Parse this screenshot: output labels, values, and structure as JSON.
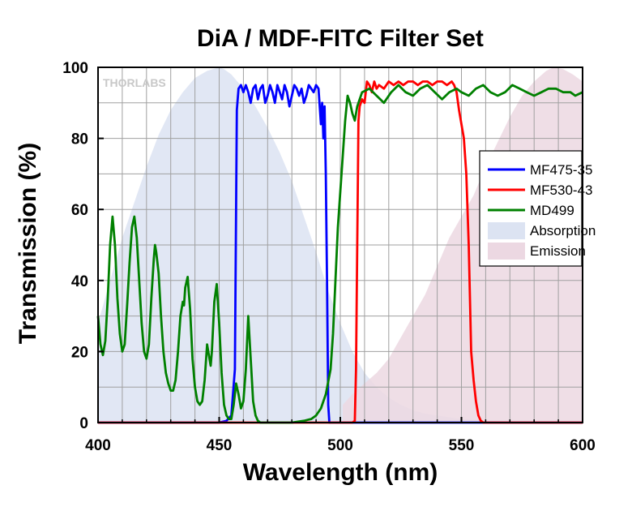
{
  "chart_data": {
    "type": "line",
    "title": "DiA / MDF-FITC Filter Set",
    "xlabel": "Wavelength (nm)",
    "ylabel": "Transmission (%)",
    "xlim": [
      400,
      600
    ],
    "ylim": [
      0,
      100
    ],
    "xticks": [
      400,
      450,
      500,
      550,
      600
    ],
    "yticks": [
      0,
      20,
      40,
      60,
      80,
      100
    ],
    "grid": true,
    "legend_position": "right",
    "logo": "THORLABS",
    "series": [
      {
        "name": "MF475-35",
        "kind": "line",
        "color": "#0000ff",
        "points": [
          [
            400,
            0
          ],
          [
            450,
            0
          ],
          [
            453,
            0.5
          ],
          [
            455,
            2
          ],
          [
            456.5,
            15
          ],
          [
            457.3,
            88
          ],
          [
            458,
            94
          ],
          [
            459,
            95
          ],
          [
            460,
            93
          ],
          [
            461,
            95
          ],
          [
            462,
            93
          ],
          [
            463,
            90
          ],
          [
            464,
            94
          ],
          [
            465,
            95
          ],
          [
            466,
            91
          ],
          [
            467,
            94
          ],
          [
            468,
            95
          ],
          [
            469,
            90
          ],
          [
            470,
            92
          ],
          [
            471,
            95
          ],
          [
            472,
            93
          ],
          [
            473,
            90
          ],
          [
            474,
            95
          ],
          [
            475,
            93
          ],
          [
            476,
            91
          ],
          [
            477,
            95
          ],
          [
            478,
            93
          ],
          [
            479,
            89
          ],
          [
            480,
            92
          ],
          [
            481,
            95
          ],
          [
            482,
            94
          ],
          [
            483,
            92
          ],
          [
            484,
            94
          ],
          [
            485,
            90
          ],
          [
            486,
            92
          ],
          [
            487,
            95
          ],
          [
            488,
            94
          ],
          [
            489,
            93
          ],
          [
            490,
            95
          ],
          [
            491,
            94
          ],
          [
            492,
            84
          ],
          [
            492.5,
            90
          ],
          [
            493,
            80
          ],
          [
            493.5,
            89
          ],
          [
            494,
            70
          ],
          [
            494.5,
            40
          ],
          [
            495,
            5
          ],
          [
            495.5,
            0
          ],
          [
            600,
            0
          ]
        ]
      },
      {
        "name": "MF530-43",
        "kind": "line",
        "color": "#ff0000",
        "points": [
          [
            400,
            0
          ],
          [
            505,
            0
          ],
          [
            506,
            0.5
          ],
          [
            506.5,
            15
          ],
          [
            507,
            50
          ],
          [
            507.5,
            85
          ],
          [
            508,
            89
          ],
          [
            509,
            91
          ],
          [
            510,
            90
          ],
          [
            511,
            96
          ],
          [
            512,
            95
          ],
          [
            513,
            93
          ],
          [
            514,
            96
          ],
          [
            515,
            94
          ],
          [
            516,
            95
          ],
          [
            518,
            94
          ],
          [
            520,
            96
          ],
          [
            522,
            95
          ],
          [
            524,
            96
          ],
          [
            526,
            95
          ],
          [
            528,
            96
          ],
          [
            530,
            96
          ],
          [
            532,
            95
          ],
          [
            534,
            96
          ],
          [
            536,
            96
          ],
          [
            538,
            95
          ],
          [
            540,
            96
          ],
          [
            542,
            96
          ],
          [
            544,
            95
          ],
          [
            546,
            96
          ],
          [
            547,
            95
          ],
          [
            548,
            93
          ],
          [
            549,
            88
          ],
          [
            550,
            84
          ],
          [
            551,
            80
          ],
          [
            552,
            70
          ],
          [
            553,
            50
          ],
          [
            554,
            20
          ],
          [
            555,
            12
          ],
          [
            556,
            6
          ],
          [
            557,
            2
          ],
          [
            558,
            0.5
          ],
          [
            559,
            0
          ],
          [
            600,
            0
          ]
        ]
      },
      {
        "name": "MD499",
        "kind": "line",
        "color": "#008000",
        "points": [
          [
            400,
            30
          ],
          [
            401,
            22
          ],
          [
            402,
            19
          ],
          [
            403,
            23
          ],
          [
            404,
            35
          ],
          [
            405,
            50
          ],
          [
            406,
            58
          ],
          [
            407,
            50
          ],
          [
            408,
            35
          ],
          [
            409,
            25
          ],
          [
            410,
            20
          ],
          [
            411,
            22
          ],
          [
            412,
            33
          ],
          [
            413,
            45
          ],
          [
            414,
            55
          ],
          [
            415,
            58
          ],
          [
            416,
            52
          ],
          [
            417,
            40
          ],
          [
            418,
            28
          ],
          [
            419,
            20
          ],
          [
            420,
            18
          ],
          [
            421,
            22
          ],
          [
            422,
            35
          ],
          [
            423,
            46
          ],
          [
            423.5,
            50
          ],
          [
            424,
            48
          ],
          [
            425,
            42
          ],
          [
            426,
            30
          ],
          [
            427,
            20
          ],
          [
            428,
            14
          ],
          [
            429,
            11
          ],
          [
            430,
            9
          ],
          [
            431,
            9
          ],
          [
            432,
            12
          ],
          [
            433,
            20
          ],
          [
            434,
            30
          ],
          [
            435,
            34
          ],
          [
            435.5,
            33
          ],
          [
            436,
            38
          ],
          [
            437,
            41
          ],
          [
            438,
            32
          ],
          [
            439,
            18
          ],
          [
            440,
            10
          ],
          [
            441,
            6
          ],
          [
            442,
            5
          ],
          [
            443,
            6
          ],
          [
            444,
            12
          ],
          [
            445,
            22
          ],
          [
            446,
            18
          ],
          [
            446.5,
            16
          ],
          [
            447,
            20
          ],
          [
            448,
            34
          ],
          [
            449,
            39
          ],
          [
            450,
            28
          ],
          [
            451,
            14
          ],
          [
            452,
            5
          ],
          [
            453,
            2
          ],
          [
            454,
            1
          ],
          [
            455,
            1
          ],
          [
            456,
            5
          ],
          [
            457,
            11
          ],
          [
            458,
            8
          ],
          [
            459,
            4
          ],
          [
            460,
            6
          ],
          [
            461,
            15
          ],
          [
            462,
            30
          ],
          [
            463,
            18
          ],
          [
            464,
            6
          ],
          [
            465,
            2
          ],
          [
            466,
            0.5
          ],
          [
            467,
            0
          ],
          [
            475,
            0
          ],
          [
            480,
            0
          ],
          [
            485,
            0.5
          ],
          [
            488,
            1
          ],
          [
            490,
            2
          ],
          [
            492,
            4
          ],
          [
            494,
            8
          ],
          [
            496,
            15
          ],
          [
            497,
            25
          ],
          [
            498,
            40
          ],
          [
            499,
            55
          ],
          [
            500,
            65
          ],
          [
            501,
            75
          ],
          [
            502,
            85
          ],
          [
            503,
            92
          ],
          [
            504,
            90
          ],
          [
            505,
            87
          ],
          [
            506,
            85
          ],
          [
            507,
            89
          ],
          [
            509,
            93
          ],
          [
            512,
            94
          ],
          [
            515,
            92
          ],
          [
            518,
            90
          ],
          [
            521,
            93
          ],
          [
            524,
            95
          ],
          [
            527,
            93
          ],
          [
            530,
            92
          ],
          [
            533,
            94
          ],
          [
            536,
            95
          ],
          [
            539,
            93
          ],
          [
            542,
            91
          ],
          [
            545,
            93
          ],
          [
            548,
            94
          ],
          [
            550,
            93
          ],
          [
            553,
            92
          ],
          [
            556,
            94
          ],
          [
            559,
            95
          ],
          [
            562,
            93
          ],
          [
            565,
            92
          ],
          [
            568,
            93
          ],
          [
            571,
            95
          ],
          [
            574,
            94
          ],
          [
            577,
            93
          ],
          [
            580,
            92
          ],
          [
            583,
            93
          ],
          [
            586,
            94
          ],
          [
            589,
            94
          ],
          [
            592,
            93
          ],
          [
            595,
            93
          ],
          [
            597,
            92
          ],
          [
            600,
            93
          ]
        ]
      },
      {
        "name": "Absorption",
        "kind": "area",
        "color": "#dce3f2",
        "points": [
          [
            400,
            28
          ],
          [
            405,
            40
          ],
          [
            410,
            52
          ],
          [
            415,
            62
          ],
          [
            420,
            72
          ],
          [
            425,
            81
          ],
          [
            430,
            88
          ],
          [
            435,
            93
          ],
          [
            440,
            97
          ],
          [
            445,
            99
          ],
          [
            450,
            100
          ],
          [
            452,
            99.5
          ],
          [
            455,
            98
          ],
          [
            460,
            94
          ],
          [
            465,
            89
          ],
          [
            470,
            83
          ],
          [
            475,
            76
          ],
          [
            480,
            68
          ],
          [
            485,
            58
          ],
          [
            490,
            48
          ],
          [
            495,
            37
          ],
          [
            500,
            28
          ],
          [
            505,
            20
          ],
          [
            510,
            14
          ],
          [
            515,
            10
          ],
          [
            520,
            7
          ],
          [
            525,
            5
          ],
          [
            530,
            3.5
          ],
          [
            535,
            2.5
          ],
          [
            540,
            2
          ],
          [
            550,
            1
          ],
          [
            560,
            0.5
          ],
          [
            570,
            0.3
          ],
          [
            600,
            0.2
          ]
        ]
      },
      {
        "name": "Emission",
        "kind": "area",
        "color": "#ecd8e2",
        "points": [
          [
            501,
            5
          ],
          [
            505,
            8
          ],
          [
            510,
            11
          ],
          [
            515,
            14
          ],
          [
            520,
            18
          ],
          [
            525,
            24
          ],
          [
            530,
            30
          ],
          [
            535,
            36
          ],
          [
            540,
            44
          ],
          [
            545,
            52
          ],
          [
            550,
            58
          ],
          [
            555,
            64
          ],
          [
            560,
            72
          ],
          [
            565,
            79
          ],
          [
            570,
            86
          ],
          [
            575,
            92
          ],
          [
            580,
            96
          ],
          [
            585,
            99
          ],
          [
            588,
            100
          ],
          [
            592,
            99.5
          ],
          [
            596,
            98
          ],
          [
            600,
            96
          ]
        ]
      }
    ]
  },
  "colors": {
    "background": "#ffffff",
    "grid": "#a0a0a0",
    "axes": "#000000"
  }
}
